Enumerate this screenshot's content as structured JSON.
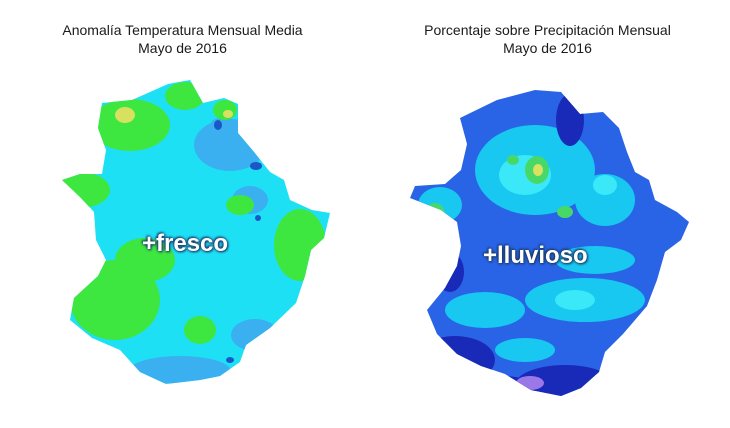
{
  "maps": [
    {
      "title_line1": "Anomalía Temperatura Mensual Media",
      "title_line2": "Mayo de 2016",
      "overlay_label": "+fresco",
      "colors": {
        "base": "#1ee0f5",
        "green": "#3ee640",
        "mid_blue": "#3ab0f0",
        "dark_blue": "#1a58c8",
        "yellow": "#d8e060"
      }
    },
    {
      "title_line1": "Porcentaje sobre Precipitación Mensual",
      "title_line2": "Mayo de 2016",
      "overlay_label": "+lluvioso",
      "colors": {
        "base": "#2a64e6",
        "light_blue": "#18c8f0",
        "cyan": "#3ae8f8",
        "navy": "#1a2ab8",
        "green": "#48d868",
        "yellow": "#dce060",
        "lavender": "#9a78e8"
      }
    }
  ]
}
